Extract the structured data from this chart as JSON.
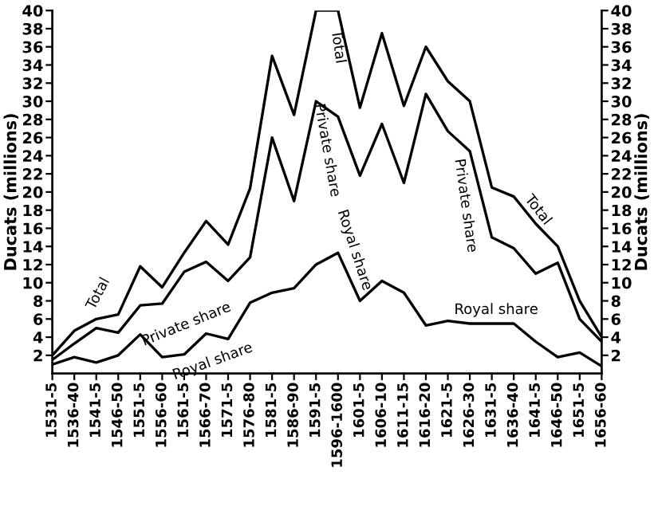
{
  "chart_data": {
    "type": "line",
    "categories": [
      "1531-5",
      "1536-40",
      "1541-5",
      "1546-50",
      "1551-5",
      "1556-60",
      "1561-5",
      "1566-70",
      "1571-5",
      "1576-80",
      "1581-5",
      "1586-90",
      "1591-5",
      "1596-1600",
      "1601-5",
      "1606-10",
      "1611-15",
      "1616-20",
      "1621-5",
      "1626-30",
      "1631-5",
      "1636-40",
      "1641-5",
      "1646-50",
      "1651-5",
      "1656-60"
    ],
    "series": [
      {
        "color": "#000000",
        "values": [
          2,
          4.7,
          6,
          6.5,
          11.8,
          9.5,
          13.3,
          16.8,
          14.2,
          20.4,
          35,
          28.5,
          40,
          40,
          29.3,
          37.5,
          29.5,
          36,
          32.2,
          30,
          20.5,
          19.5,
          16.5,
          14,
          8,
          4
        ]
      },
      {
        "color": "#000000",
        "values": [
          1.5,
          3.3,
          5,
          4.5,
          7.5,
          7.7,
          11.2,
          12.3,
          10.2,
          12.8,
          26,
          19,
          30,
          28.3,
          21.8,
          27.5,
          21,
          30.8,
          26.7,
          24.5,
          15,
          13.8,
          11,
          12.2,
          6,
          3.5
        ]
      },
      {
        "color": "#000000",
        "values": [
          1,
          1.8,
          1.2,
          2,
          4.3,
          1.8,
          2.1,
          4.4,
          3.8,
          7.8,
          8.9,
          9.4,
          12,
          13.3,
          8,
          10.2,
          8.9,
          5.3,
          5.8,
          5.5,
          5.5,
          5.5,
          3.5,
          1.8,
          2.3,
          0.8
        ]
      }
    ],
    "ylabel": "Ducats (millions)",
    "y2label": "Ducats (millions)",
    "ylim": [
      0,
      40
    ],
    "yticks": [
      2,
      4,
      6,
      8,
      10,
      12,
      14,
      16,
      18,
      20,
      22,
      24,
      26,
      28,
      30,
      32,
      34,
      36,
      38,
      40
    ],
    "y2lim": [
      0,
      40
    ],
    "y2ticks": [
      2,
      4,
      6,
      8,
      10,
      12,
      14,
      16,
      18,
      20,
      22,
      24,
      26,
      28,
      30,
      32,
      34,
      36,
      38,
      40
    ],
    "annotations": [
      "Total",
      "Private share",
      "Royal share",
      "Total",
      "Private share",
      "Royal share",
      "Private share",
      "Total",
      "Royal share"
    ],
    "grid": false,
    "legend": false,
    "marker": "none",
    "line_style": "solid"
  }
}
